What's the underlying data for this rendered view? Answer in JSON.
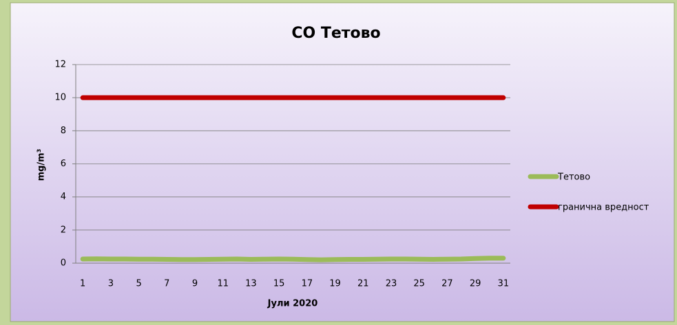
{
  "chart_data": {
    "type": "line",
    "title": "CO Тетово",
    "y_label": "mg/m³",
    "x_label": "Јули 2020",
    "categories": [
      1,
      null,
      3,
      null,
      5,
      null,
      7,
      null,
      9,
      null,
      11,
      null,
      13,
      null,
      15,
      null,
      17,
      null,
      19,
      null,
      21,
      null,
      23,
      null,
      25,
      null,
      27,
      null,
      29,
      null,
      31
    ],
    "series": [
      {
        "name": "Тетово",
        "color": "#9bbb59",
        "values": [
          0.25,
          0.26,
          0.25,
          0.25,
          0.24,
          0.24,
          0.23,
          0.22,
          0.22,
          0.23,
          0.24,
          0.25,
          0.23,
          0.24,
          0.25,
          0.24,
          0.22,
          0.2,
          0.22,
          0.23,
          0.23,
          0.24,
          0.25,
          0.25,
          0.24,
          0.23,
          0.24,
          0.25,
          0.28,
          0.3,
          0.3
        ]
      },
      {
        "name": "гранична вредност",
        "color": "#c00000",
        "values": [
          10,
          10,
          10,
          10,
          10,
          10,
          10,
          10,
          10,
          10,
          10,
          10,
          10,
          10,
          10,
          10,
          10,
          10,
          10,
          10,
          10,
          10,
          10,
          10,
          10,
          10,
          10,
          10,
          10,
          10,
          10
        ]
      }
    ],
    "ylim": [
      0,
      12
    ],
    "yticks": [
      0,
      2,
      4,
      6,
      8,
      10,
      12
    ],
    "grid": true,
    "legend": "right"
  }
}
